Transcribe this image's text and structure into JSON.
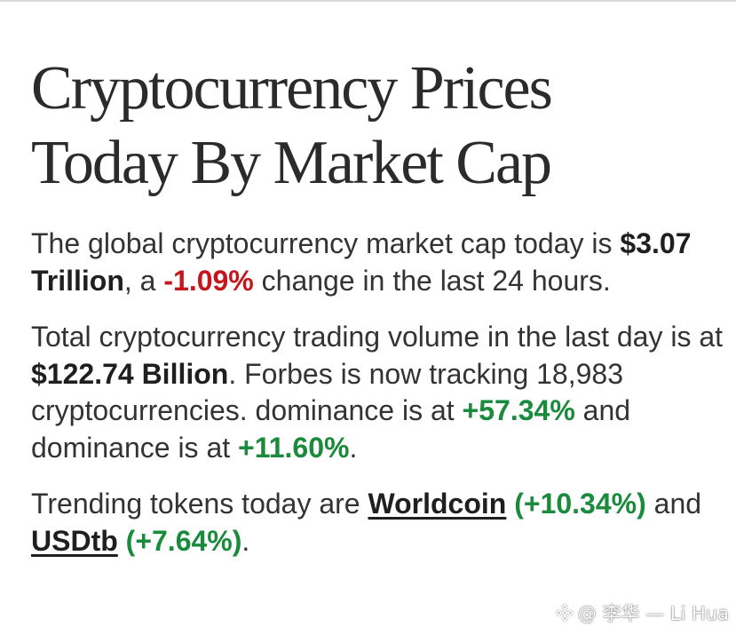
{
  "title": {
    "line1": "Cryptocurrency Prices",
    "line2": "Today By Market Cap"
  },
  "paragraph1": {
    "t1": "The global cryptocurrency market cap today is ",
    "market_cap": "$3.07 Trillion",
    "t2": ", a ",
    "change": "-1.09%",
    "t3": " change in the last 24 hours."
  },
  "paragraph2": {
    "t1": "Total cryptocurrency trading volume in the last day is at ",
    "volume": "$122.74 Billion",
    "t2": ". Forbes is now tracking 18,983 cryptocurrencies. dominance is at ",
    "dominance1": "+57.34%",
    "t3": " and dominance is at ",
    "dominance2": "+11.60%",
    "t4": "."
  },
  "paragraph3": {
    "t1": "Trending tokens today are ",
    "token1_name": "Worldcoin",
    "token1_change": "(+10.34%)",
    "t2": " and ",
    "token2_name": "USDtb",
    "token2_change": "(+7.64%)",
    "t3": "."
  },
  "watermark": {
    "text": "@ 李华 — Li Hua",
    "icon": "binance-logo-icon"
  },
  "colors": {
    "negative": "#c4161c",
    "positive": "#1a8a3c",
    "text": "#333333"
  }
}
